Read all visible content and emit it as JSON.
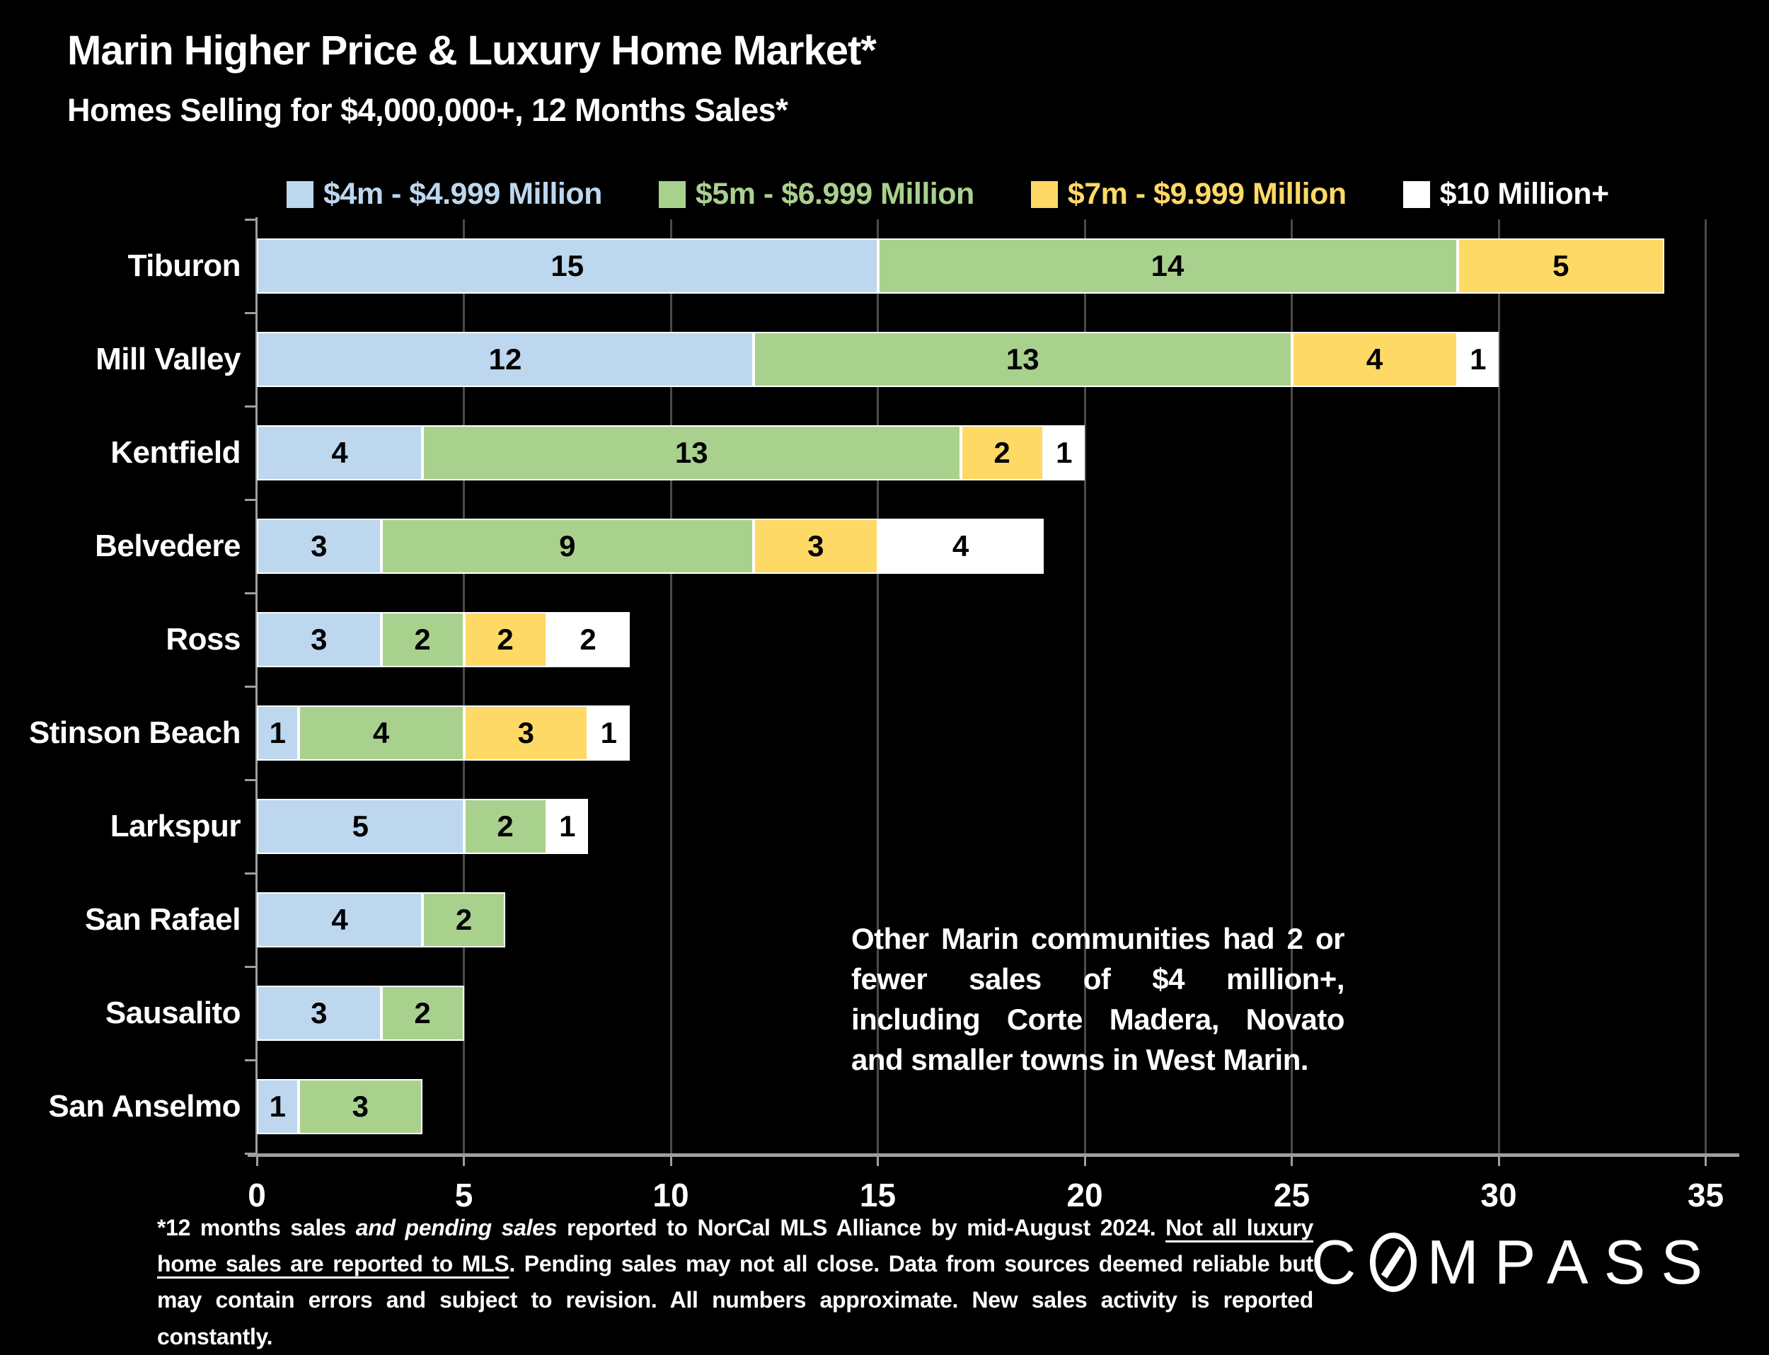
{
  "title": "Marin Higher Price & Luxury Home Market*",
  "subtitle": "Homes Selling for $4,000,000+, 12 Months Sales*",
  "legend": [
    {
      "label": "$4m - $4.999 Million",
      "color": "#BDD7EE"
    },
    {
      "label": "$5m - $6.999 Million",
      "color": "#A9D18E"
    },
    {
      "label": "$7m - $9.999 Million",
      "color": "#FFD966"
    },
    {
      "label": "$10 Million+",
      "color": "#FFFFFF"
    }
  ],
  "chart_data": {
    "type": "bar",
    "orientation": "horizontal",
    "stacked": true,
    "title": "Marin Higher Price & Luxury Home Market*",
    "subtitle": "Homes Selling for $4,000,000+, 12 Months Sales*",
    "categories": [
      "Tiburon",
      "Mill Valley",
      "Kentfield",
      "Belvedere",
      "Ross",
      "Stinson Beach",
      "Larkspur",
      "San Rafael",
      "Sausalito",
      "San Anselmo"
    ],
    "series": [
      {
        "name": "$4m - $4.999 Million",
        "color": "#BDD7EE",
        "values": [
          15,
          12,
          4,
          3,
          3,
          1,
          5,
          4,
          3,
          1
        ]
      },
      {
        "name": "$5m - $6.999 Million",
        "color": "#A9D18E",
        "values": [
          14,
          13,
          13,
          9,
          2,
          4,
          2,
          2,
          2,
          3
        ]
      },
      {
        "name": "$7m - $9.999 Million",
        "color": "#FFD966",
        "values": [
          5,
          4,
          2,
          3,
          2,
          3,
          0,
          0,
          0,
          0
        ]
      },
      {
        "name": "$10 Million+",
        "color": "#FFFFFF",
        "values": [
          0,
          1,
          1,
          4,
          2,
          1,
          1,
          0,
          0,
          0
        ]
      }
    ],
    "totals": [
      34,
      30,
      20,
      19,
      9,
      9,
      8,
      6,
      5,
      4
    ],
    "xlim": [
      0,
      35
    ],
    "x_ticks": [
      0,
      5,
      10,
      15,
      20,
      25,
      30,
      35
    ],
    "x_tick_labels": [
      "0",
      "5",
      "10",
      "15",
      "20",
      "25",
      "30",
      "35"
    ],
    "grid": true,
    "legend_position": "top",
    "xlabel": "",
    "ylabel": ""
  },
  "annotation": "Other Marin communities had 2 or fewer sales of $4 million+, including Corte Madera, Novato and smaller towns in West Marin.",
  "footnote": {
    "segments": [
      {
        "text": "*12 months sales ",
        "style": "normal"
      },
      {
        "text": "and pending sales",
        "style": "italic"
      },
      {
        "text": " reported to NorCal MLS Alliance by mid-August 2024. ",
        "style": "normal"
      },
      {
        "text": "Not all luxury home sales are reported to MLS",
        "style": "underline"
      },
      {
        "text": ". Pending sales may not all close. Data from sources deemed reliable but may contain errors and subject to revision. All numbers approximate. New sales activity is reported constantly.",
        "style": "normal"
      }
    ]
  },
  "logo": {
    "text": "COMPASS"
  },
  "colors": {
    "background": "#000000",
    "text": "#FFFFFF",
    "bar_number": "#000000",
    "gridline": "#4a4a4a",
    "axis": "#9e9e9e",
    "segment_border": "#FFFFFF"
  }
}
